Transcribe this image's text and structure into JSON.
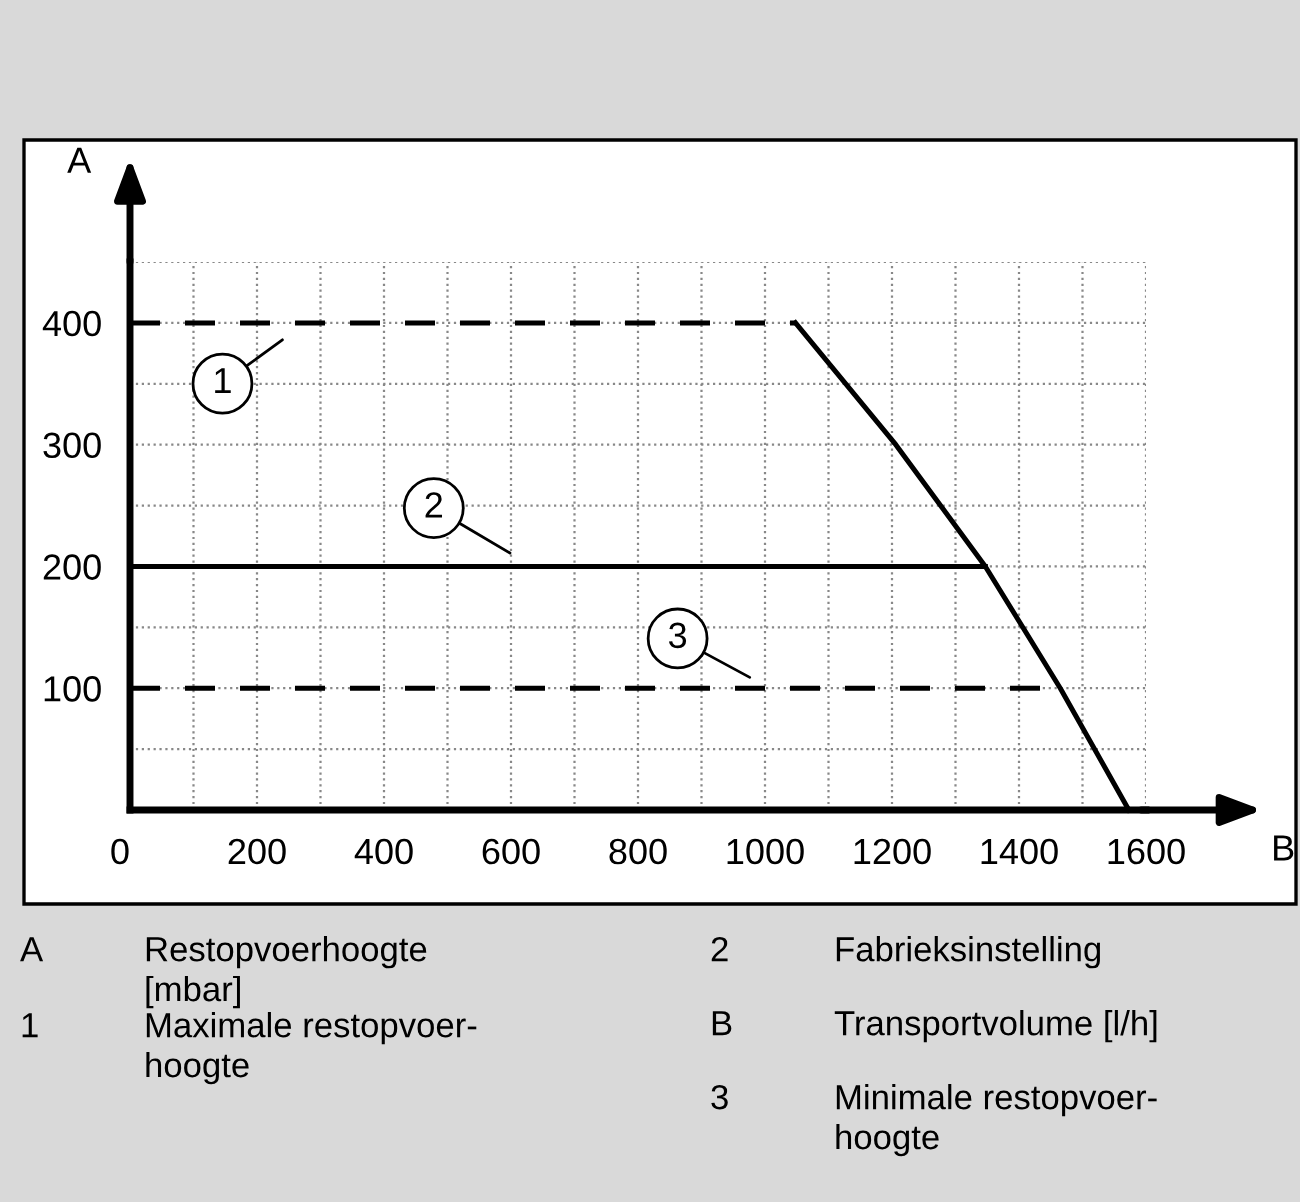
{
  "chart_data": {
    "type": "line",
    "xlabel": "B",
    "ylabel": "A",
    "xlim": [
      0,
      1600
    ],
    "ylim": [
      0,
      450
    ],
    "xticks": [
      0,
      {
        "value": 100,
        "label": null
      },
      200,
      {
        "value": 300,
        "label": null
      },
      400,
      {
        "value": 500,
        "label": null
      },
      600,
      {
        "value": 700,
        "label": null
      },
      800,
      {
        "value": 900,
        "label": null
      },
      1000,
      {
        "value": 1100,
        "label": null
      },
      1200,
      {
        "value": 1300,
        "label": null
      },
      1400,
      {
        "value": 1500,
        "label": null
      },
      1600
    ],
    "yticks": [
      {
        "value": 50,
        "label": null
      },
      100,
      {
        "value": 150,
        "label": null
      },
      200,
      {
        "value": 250,
        "label": null
      },
      300,
      {
        "value": 350,
        "label": null
      },
      400,
      {
        "value": 450,
        "label": null
      }
    ],
    "grid": true,
    "marker": "none",
    "series": [
      {
        "color": "#000000",
        "line_style": "solid",
        "x": [
          1048,
          1206,
          1347,
          1465,
          1573
        ],
        "values": [
          400,
          300,
          200,
          100,
          0
        ]
      },
      {
        "color": "#000000",
        "line_style": "dashed",
        "x": [
          0,
          1048
        ],
        "values": [
          400,
          400
        ]
      },
      {
        "color": "#000000",
        "line_style": "solid",
        "x": [
          0,
          1347
        ],
        "values": [
          200,
          200
        ]
      },
      {
        "color": "#000000",
        "line_style": "dashed",
        "x": [
          0,
          1465
        ],
        "values": [
          100,
          100
        ]
      }
    ],
    "annotations": [
      "1",
      "2",
      "3",
      "A",
      "Restopvoerhoogte\n[mbar]",
      "1",
      "Maximale restopvoer-\nhoogte",
      "2",
      "Fabrieksinstelling",
      "B",
      "Transportvolume [l/h]",
      "3",
      "Minimale restopvoer-\nhoogte"
    ]
  }
}
